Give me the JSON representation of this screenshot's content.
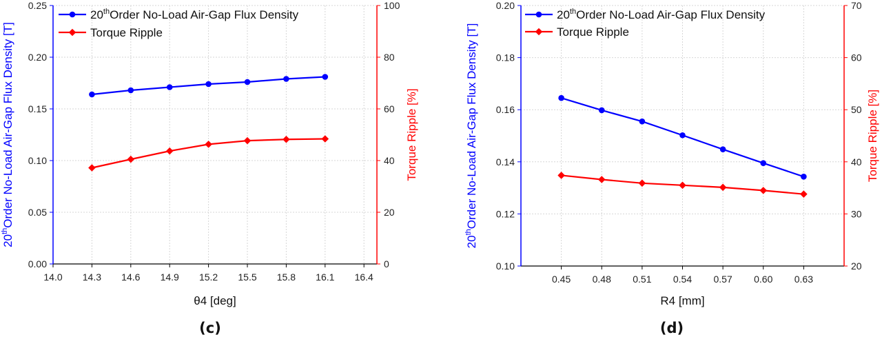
{
  "chart_data": [
    {
      "type": "line",
      "panel_label": "(c)",
      "xlabel": "θ4 [deg]",
      "ylabel": {
        "main": "Order No-Load Air-Gap Flux Density [T]",
        "prefix": "20",
        "sup": "th"
      },
      "y2label": "Torque Ripple [%]",
      "xlim": [
        14.0,
        16.5
      ],
      "xticks": [
        14.0,
        14.3,
        14.6,
        14.9,
        15.2,
        15.5,
        15.8,
        16.1,
        16.4
      ],
      "xtick_labels": [
        "14.0",
        "14.3",
        "14.6",
        "14.9",
        "15.2",
        "15.5",
        "15.8",
        "16.1",
        "16.4"
      ],
      "ylim": [
        0,
        0.25
      ],
      "yticks": [
        0,
        0.05,
        0.1,
        0.15,
        0.2,
        0.25
      ],
      "ytick_labels": [
        "0.00",
        "0.05",
        "0.10",
        "0.15",
        "0.20",
        "0.25"
      ],
      "y2lim": [
        0,
        100
      ],
      "y2ticks": [
        0,
        20,
        40,
        60,
        80,
        100
      ],
      "y2tick_labels": [
        "0",
        "20",
        "40",
        "60",
        "80",
        "100"
      ],
      "grid": true,
      "legend": "top-left",
      "series": [
        {
          "name": "Order No-Load Air-Gap Flux Density",
          "legend_prefix": "20",
          "legend_sup": "th",
          "axis": "left",
          "color": "#0000ff",
          "marker": "circle",
          "x": [
            14.3,
            14.6,
            14.9,
            15.2,
            15.5,
            15.8,
            16.1
          ],
          "values": [
            0.164,
            0.168,
            0.171,
            0.174,
            0.176,
            0.179,
            0.181
          ]
        },
        {
          "name": "Torque Ripple",
          "axis": "right",
          "color": "#ff0000",
          "marker": "diamond",
          "x": [
            14.3,
            14.6,
            14.9,
            15.2,
            15.5,
            15.8,
            16.1
          ],
          "values": [
            37.2,
            40.5,
            43.7,
            46.3,
            47.7,
            48.2,
            48.4
          ]
        }
      ]
    },
    {
      "type": "line",
      "panel_label": "(d)",
      "xlabel": "R4 [mm]",
      "ylabel": {
        "main": "Order No-Load Air-Gap Flux Density [T]",
        "prefix": "20",
        "sup": "th"
      },
      "y2label": "Torque Ripple [%]",
      "xlim": [
        0.42,
        0.66
      ],
      "xticks": [
        0.45,
        0.48,
        0.51,
        0.54,
        0.57,
        0.6,
        0.63
      ],
      "xtick_labels": [
        "0.45",
        "0.48",
        "0.51",
        "0.54",
        "0.57",
        "0.60",
        "0.63"
      ],
      "ylim": [
        0.1,
        0.2
      ],
      "yticks": [
        0.1,
        0.12,
        0.14,
        0.16,
        0.18,
        0.2
      ],
      "ytick_labels": [
        "0.10",
        "0.12",
        "0.14",
        "0.16",
        "0.18",
        "0.20"
      ],
      "y2lim": [
        20,
        70
      ],
      "y2ticks": [
        20,
        30,
        40,
        50,
        60,
        70
      ],
      "y2tick_labels": [
        "20",
        "30",
        "40",
        "50",
        "60",
        "70"
      ],
      "grid": true,
      "legend": "top-left",
      "series": [
        {
          "name": "Order No-Load Air-Gap Flux Density",
          "legend_prefix": "20",
          "legend_sup": "th",
          "axis": "left",
          "color": "#0000ff",
          "marker": "circle",
          "x": [
            0.45,
            0.48,
            0.51,
            0.54,
            0.57,
            0.6,
            0.63
          ],
          "values": [
            0.1645,
            0.1598,
            0.1555,
            0.1502,
            0.1448,
            0.1395,
            0.1343
          ]
        },
        {
          "name": "Torque Ripple",
          "axis": "right",
          "color": "#ff0000",
          "marker": "diamond",
          "x": [
            0.45,
            0.48,
            0.51,
            0.54,
            0.57,
            0.6,
            0.63
          ],
          "values": [
            37.4,
            36.6,
            35.9,
            35.5,
            35.1,
            34.5,
            33.8
          ]
        }
      ]
    }
  ]
}
